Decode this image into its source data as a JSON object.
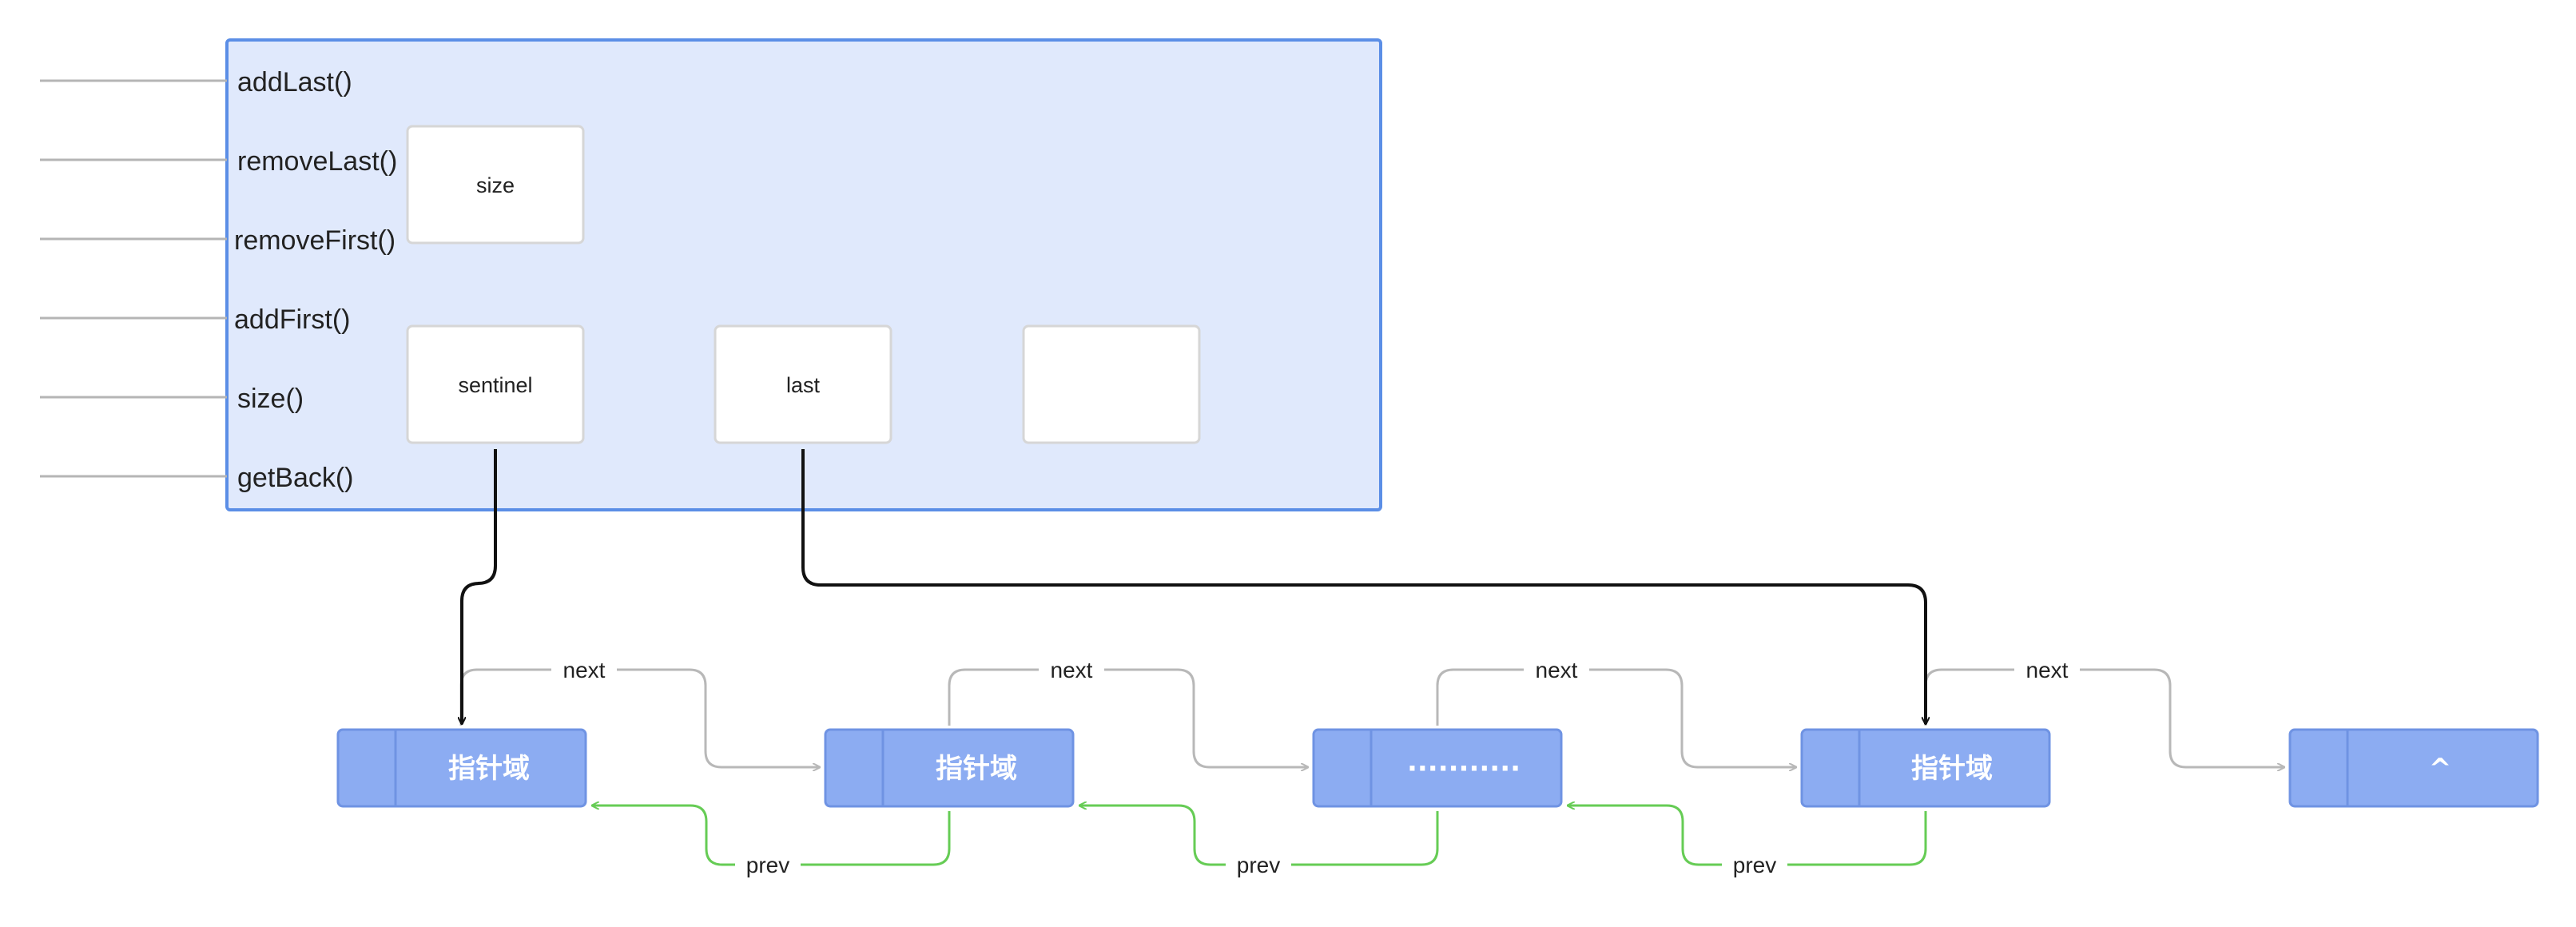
{
  "class_box": {
    "methods": [
      "addLast()",
      "removeLast()",
      "removeFirst()",
      "addFirst()",
      "size()",
      "getBack()"
    ],
    "fields": {
      "size": "size",
      "sentinel": "sentinel",
      "last": "last",
      "empty": ""
    }
  },
  "nodes": [
    {
      "label": "指针域"
    },
    {
      "label": "指针域"
    },
    {
      "label": "···········"
    },
    {
      "label": "指针域"
    },
    {
      "label": "^"
    }
  ],
  "edges": {
    "next_label": "next",
    "prev_label": "prev"
  },
  "colors": {
    "box_fill": "#e0e9fc",
    "box_stroke": "#5b8ee6",
    "node_fill": "#8cacf2",
    "node_stroke": "#6f93e3",
    "next_arrow": "#b8b8b8",
    "prev_arrow": "#66cc55",
    "pointer_arrow": "#111111"
  }
}
